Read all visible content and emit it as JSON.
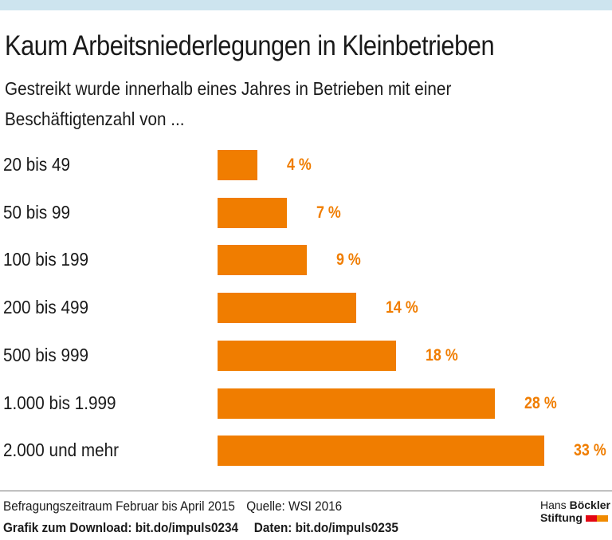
{
  "title": "Kaum Arbeitsniederlegungen in Kleinbetrieben",
  "subtitle": "Gestreikt wurde innerhalb eines Jahres in Betrieben mit einer Beschäftigtenzahl von ...",
  "colors": {
    "bar": "#f07d00",
    "label": "#f07d00",
    "topbar": "#cde4ef",
    "logo_red": "#e30613",
    "logo_orange": "#f08a00"
  },
  "chart_data": {
    "type": "bar",
    "orientation": "horizontal",
    "categories": [
      "20 bis 49",
      "50 bis 99",
      "100 bis 199",
      "200 bis 499",
      "500 bis 999",
      "1.000 bis 1.999",
      "2.000 und mehr"
    ],
    "values": [
      4,
      7,
      9,
      14,
      18,
      28,
      33
    ],
    "labels": [
      "4 %",
      "7 %",
      "9 %",
      "14 %",
      "18 %",
      "28 %",
      "33 %"
    ],
    "unit": "%",
    "xlim": [
      0,
      33
    ],
    "grid": false
  },
  "footer": {
    "line1a": "Befragungszeitraum Februar bis April 2015",
    "line1b": "Quelle: WSI 2016",
    "line2a": "Grafik zum Download: bit.do/impuls0234",
    "line2b": "Daten: bit.do/impuls0235"
  },
  "logo": {
    "line1a": "Hans",
    "line1b": "Böckler",
    "line2": "Stiftung"
  }
}
